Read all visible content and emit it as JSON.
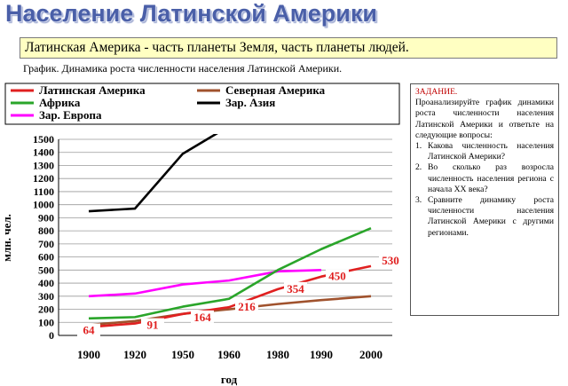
{
  "slide": {
    "title": "Население Латинской Америки",
    "subtitle": "Латинская Америка - часть планеты Земля, часть планеты людей.",
    "graph_caption": "График. Динамика роста численности населения Латинской Америки."
  },
  "task": {
    "title": "ЗАДАНИЕ.",
    "intro": "Проанализируйте график динамики роста численности населения Латинской Америки и ответьте на следующие вопросы:",
    "items": [
      {
        "num": "1.",
        "text": "Какова численность населения Латинской Америки?"
      },
      {
        "num": "2.",
        "text": "Во сколько раз возросла численность населения региона с начала XX века?"
      },
      {
        "num": "3.",
        "text": "Сравните динамику роста численности населения Латинской Америки с другими регионами."
      }
    ]
  },
  "chart_data": {
    "type": "line",
    "title": "",
    "xlabel": "год",
    "ylabel": "млн. чел.",
    "x": [
      "1900",
      "1920",
      "1950",
      "1960",
      "1980",
      "1990",
      "2000"
    ],
    "ylim": [
      0,
      1500
    ],
    "yticks": [
      "0",
      "100",
      "200",
      "300",
      "400",
      "500",
      "600",
      "700",
      "800",
      "900",
      "1000",
      "1100",
      "1200",
      "1300",
      "1400",
      "1500"
    ],
    "grid": true,
    "legend_position": "top",
    "series": [
      {
        "name": "Латинская Америка",
        "color": "#e02020",
        "values": [
          64,
          91,
          164,
          216,
          354,
          450,
          530
        ]
      },
      {
        "name": "Северная Америка",
        "color": "#a0522d",
        "values": [
          80,
          110,
          165,
          200,
          240,
          270,
          300
        ]
      },
      {
        "name": "Африка",
        "color": "#2aa52a",
        "values": [
          130,
          140,
          220,
          280,
          500,
          660,
          820
        ]
      },
      {
        "name": "Зар. Азия",
        "color": "#000000",
        "values": [
          950,
          970,
          1390,
          1600,
          null,
          null,
          null
        ]
      },
      {
        "name": "Зар. Европа",
        "color": "#ff00ff",
        "values": [
          300,
          320,
          390,
          420,
          490,
          500,
          null
        ]
      }
    ],
    "data_labels": {
      "series": "Латинская Америка",
      "values": [
        "64",
        "91",
        "164",
        "216",
        "354",
        "450",
        "530"
      ]
    }
  }
}
